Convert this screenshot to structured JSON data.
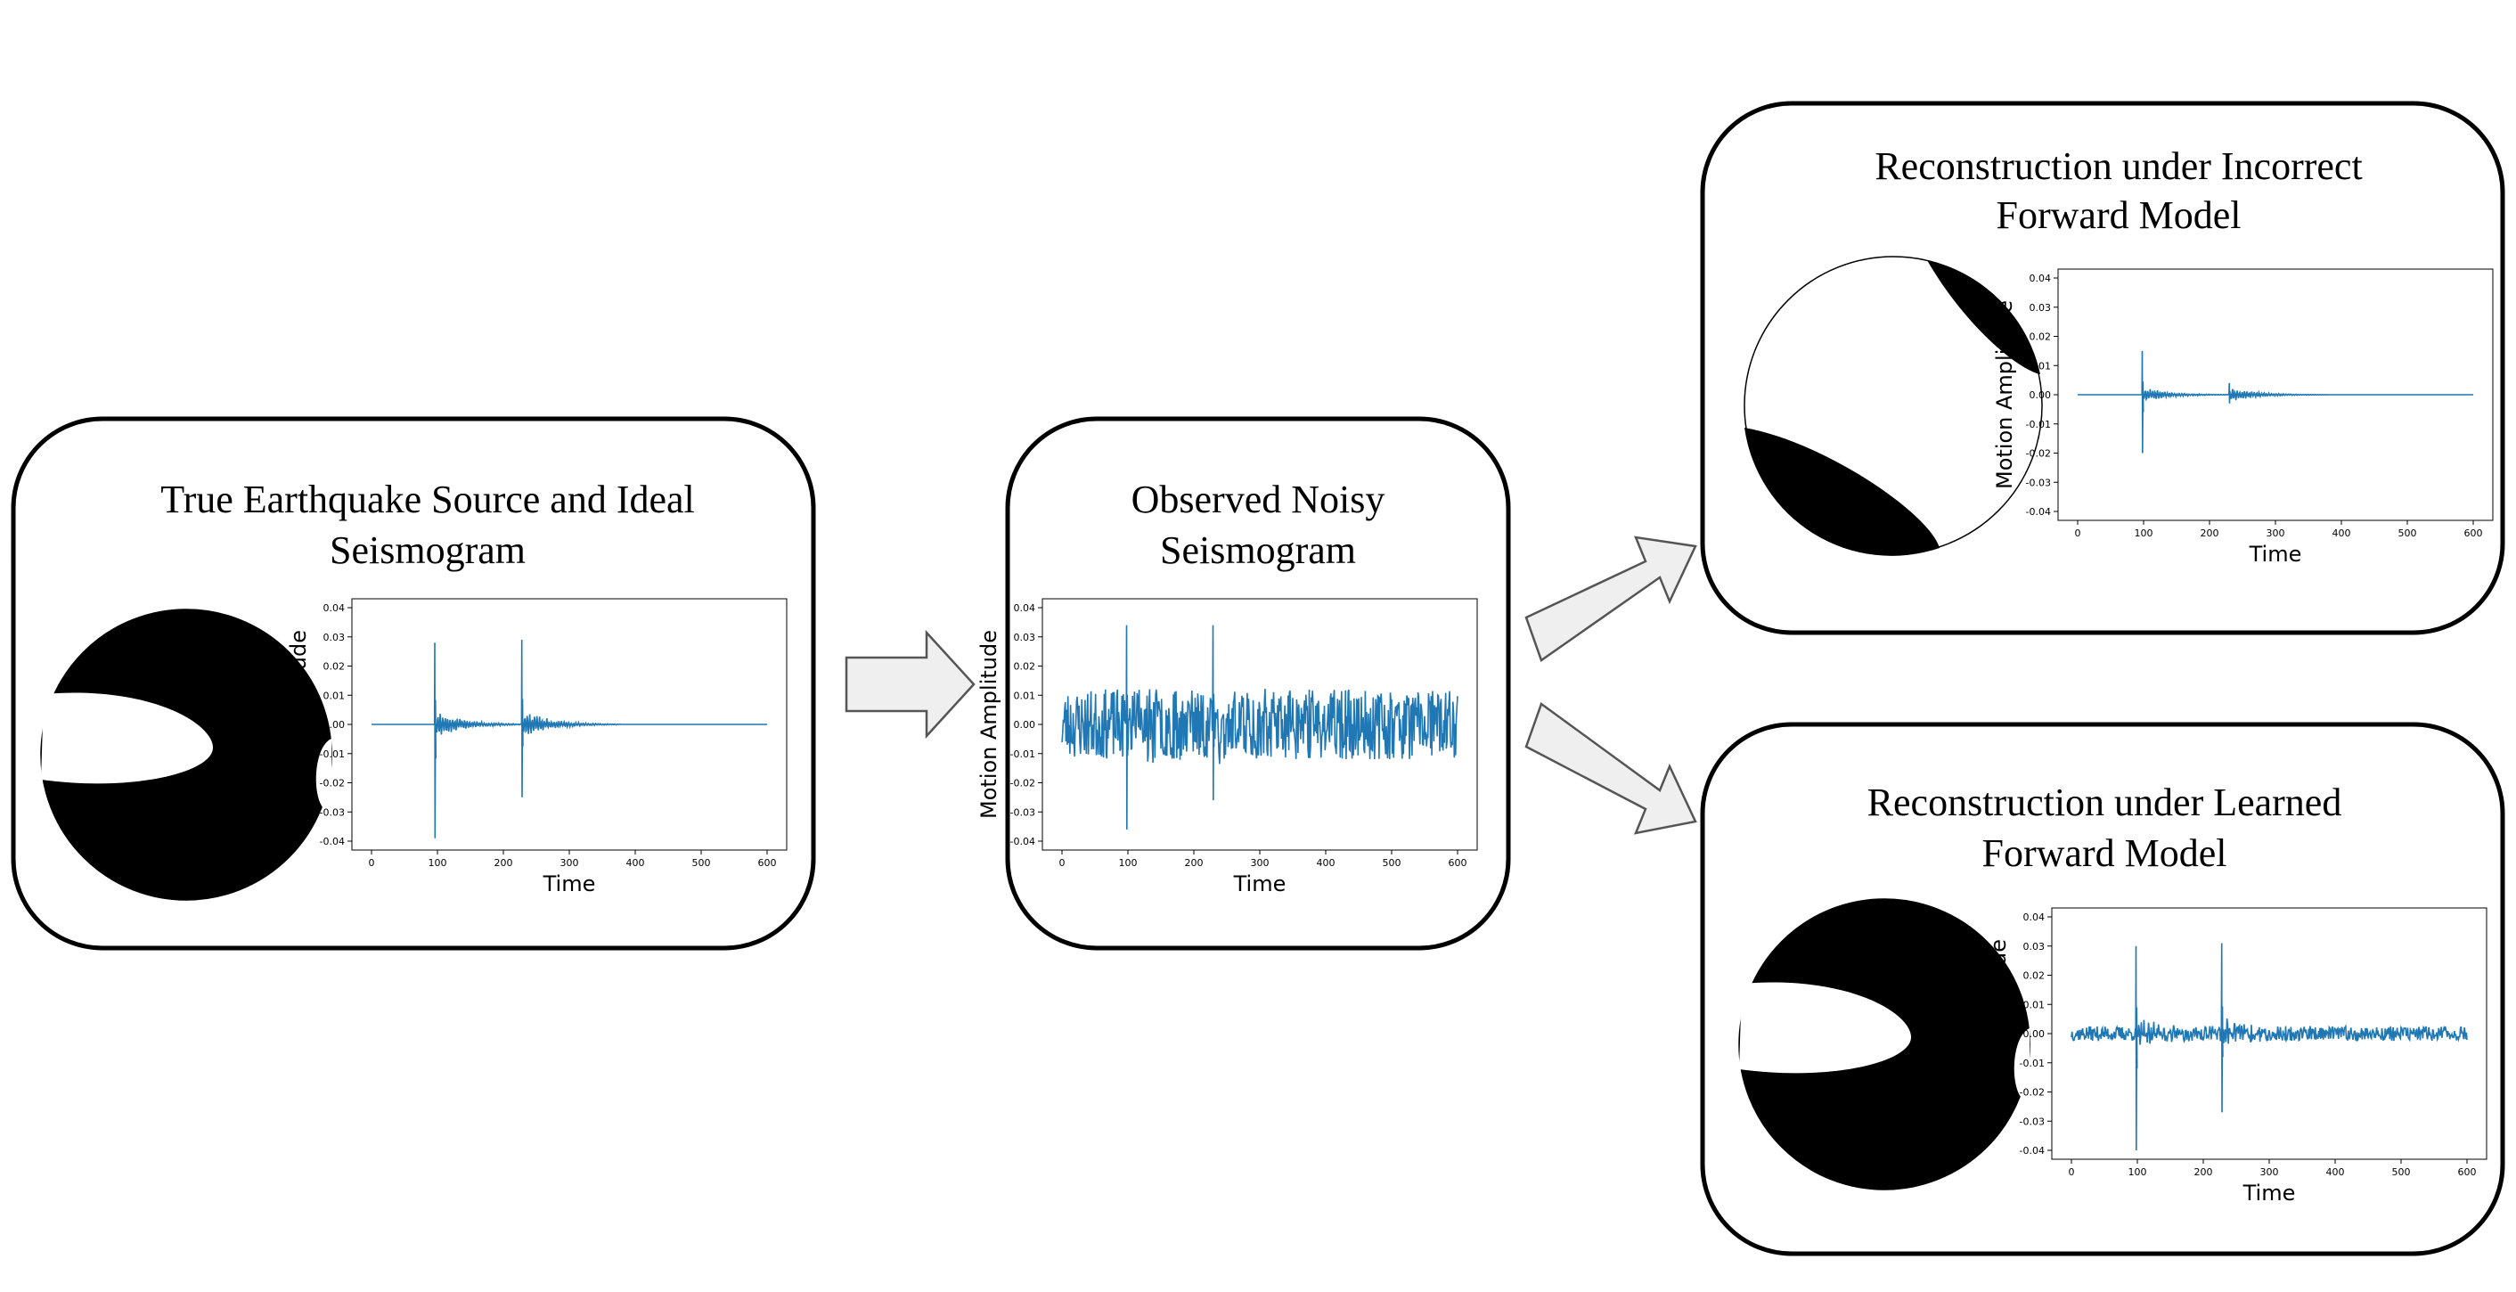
{
  "panels": [
    {
      "id": "true-source",
      "title_lines": [
        "True Earthquake Source and Ideal",
        "Seismogram"
      ],
      "beachball": "true",
      "chart": {
        "type": "line",
        "xlabel": "Time",
        "ylabel": "Motion Amplitude",
        "xlim": [
          0,
          600
        ],
        "ylim": [
          -0.04,
          0.04
        ],
        "xticks": [
          "0",
          "100",
          "200",
          "300",
          "400",
          "500",
          "600"
        ],
        "yticks": [
          "0.04",
          "0.03",
          "0.02",
          "0.01",
          "0.00",
          "-0.01",
          "-0.02",
          "-0.03",
          "-0.04"
        ],
        "series_color": "#1f77b4",
        "spikes": [
          [
            96,
            0.028,
            -0.039
          ],
          [
            228,
            0.029,
            -0.025
          ]
        ],
        "coda_amp": 0.004,
        "noise_amp": 0.0,
        "seed": 11
      }
    },
    {
      "id": "observed",
      "title_lines": [
        "Observed Noisy",
        "Seismogram"
      ],
      "beachball": "none",
      "chart": {
        "type": "line",
        "xlabel": "Time",
        "ylabel": "Motion Amplitude",
        "xlim": [
          0,
          600
        ],
        "ylim": [
          -0.04,
          0.04
        ],
        "xticks": [
          "0",
          "100",
          "200",
          "300",
          "400",
          "500",
          "600"
        ],
        "yticks": [
          "0.04",
          "0.03",
          "0.02",
          "0.01",
          "0.00",
          "-0.01",
          "-0.02",
          "-0.03",
          "-0.04"
        ],
        "series_color": "#1f77b4",
        "spikes": [
          [
            98,
            0.034,
            -0.036
          ],
          [
            229,
            0.034,
            -0.026
          ]
        ],
        "coda_amp": 0.004,
        "noise_amp": 0.012,
        "seed": 23
      }
    },
    {
      "id": "incorrect",
      "title_lines": [
        "Reconstruction under Incorrect",
        "Forward Model"
      ],
      "beachball": "incorrect",
      "chart": {
        "type": "line",
        "xlabel": "Time",
        "ylabel": "Motion Amplitude",
        "xlim": [
          0,
          600
        ],
        "ylim": [
          -0.04,
          0.04
        ],
        "xticks": [
          "0",
          "100",
          "200",
          "300",
          "400",
          "500",
          "600"
        ],
        "yticks": [
          "0.04",
          "0.03",
          "0.02",
          "0.01",
          "0.00",
          "-0.01",
          "-0.02",
          "-0.03",
          "-0.04"
        ],
        "series_color": "#1f77b4",
        "spikes": [
          [
            98,
            0.015,
            -0.02
          ],
          [
            230,
            0.004,
            -0.003
          ]
        ],
        "coda_amp": 0.002,
        "noise_amp": 0.0,
        "seed": 5
      }
    },
    {
      "id": "learned",
      "title_lines": [
        "Reconstruction under Learned",
        "Forward Model"
      ],
      "beachball": "true",
      "chart": {
        "type": "line",
        "xlabel": "Time",
        "ylabel": "Motion Amplitude",
        "xlim": [
          0,
          600
        ],
        "ylim": [
          -0.04,
          0.04
        ],
        "xticks": [
          "0",
          "100",
          "200",
          "300",
          "400",
          "500",
          "600"
        ],
        "yticks": [
          "0.04",
          "0.03",
          "0.02",
          "0.01",
          "0.00",
          "-0.01",
          "-0.02",
          "-0.03",
          "-0.04"
        ],
        "series_color": "#1f77b4",
        "spikes": [
          [
            98,
            0.03,
            -0.04
          ],
          [
            228,
            0.031,
            -0.027
          ]
        ],
        "coda_amp": 0.003,
        "noise_amp": 0.0025,
        "seed": 37
      }
    }
  ],
  "colors": {
    "box_stroke": "#000000",
    "arrow_fill": "#efefef",
    "arrow_stroke": "#555555",
    "beachball": "#000000"
  }
}
